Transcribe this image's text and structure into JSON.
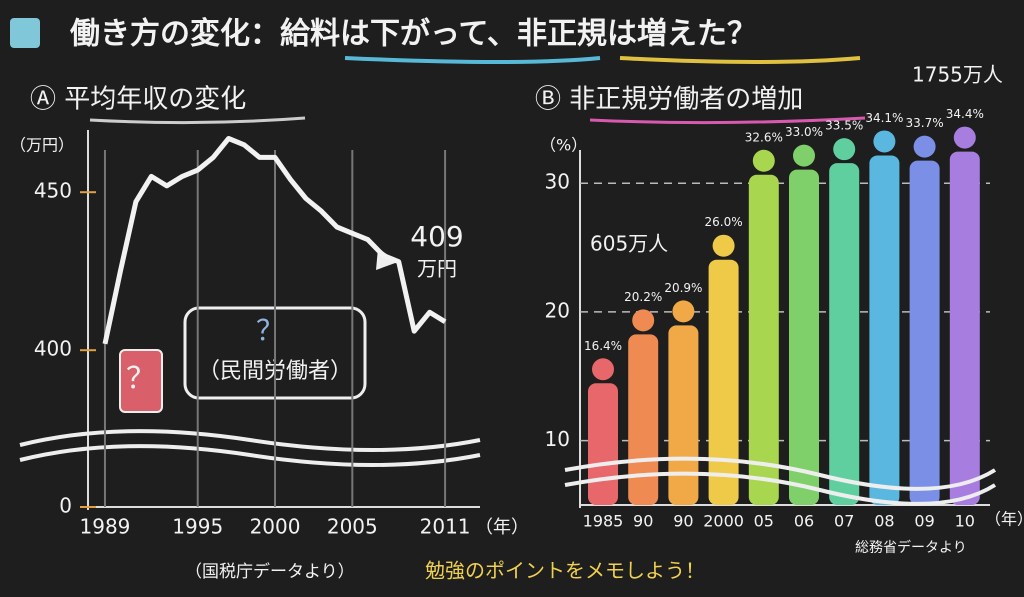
{
  "title": "働き方の変化：給料は下がって、非正規は増えた？",
  "footer": "勉強のポイントをメモしよう！",
  "chart_data": [
    {
      "type": "line",
      "title": "Ⓐ 平均年収の変化",
      "y_unit": "（万円）",
      "x_unit": "（年）",
      "x": [
        1989,
        1990,
        1991,
        1992,
        1993,
        1994,
        1995,
        1996,
        1997,
        1998,
        1999,
        2000,
        2001,
        2002,
        2003,
        2004,
        2005,
        2006,
        2007,
        2008,
        2009,
        2010,
        2011
      ],
      "values": [
        402,
        425,
        447,
        455,
        452,
        455,
        457,
        461,
        467,
        465,
        461,
        461,
        454,
        448,
        444,
        439,
        437,
        435,
        430,
        428,
        406,
        412,
        409
      ],
      "color": "#f2f2f2",
      "xlim": [
        1988,
        2013
      ],
      "ylim": [
        370,
        470
      ],
      "yticks": [
        0,
        400,
        450
      ],
      "xticks": [
        1989,
        1995,
        2000,
        2005,
        2011
      ],
      "grid": true,
      "annotations": [
        "409",
        "万円",
        "？",
        "（民間労働者）"
      ],
      "source": "（国税庁データより）"
    },
    {
      "type": "bar",
      "title": "Ⓑ 非正規労働者の増加",
      "y_unit": "（%）",
      "x_unit": "（年）",
      "categories": [
        "1985",
        "90",
        "90",
        "2000",
        "05",
        "06",
        "07",
        "08",
        "09",
        "10"
      ],
      "values": [
        16.4,
        20.2,
        20.9,
        26.0,
        32.6,
        33.0,
        33.5,
        34.1,
        33.7,
        34.4
      ],
      "value_labels": [
        "16.4%",
        "20.2%",
        "20.9%",
        "26.0%",
        "32.6%",
        "33.0%",
        "33.5%",
        "34.1%",
        "33.7%",
        "34.4%"
      ],
      "colors": [
        "#e8676b",
        "#ee8a52",
        "#f0a946",
        "#efc948",
        "#a8d64e",
        "#7fd06a",
        "#5fcfa0",
        "#5ab8e0",
        "#7b8fe6",
        "#a87de0"
      ],
      "ylim": [
        5,
        36
      ],
      "yticks": [
        10,
        20,
        30
      ],
      "grid": true,
      "annotations": [
        "605万人",
        "1755万人"
      ],
      "source": "総務省データより"
    }
  ]
}
